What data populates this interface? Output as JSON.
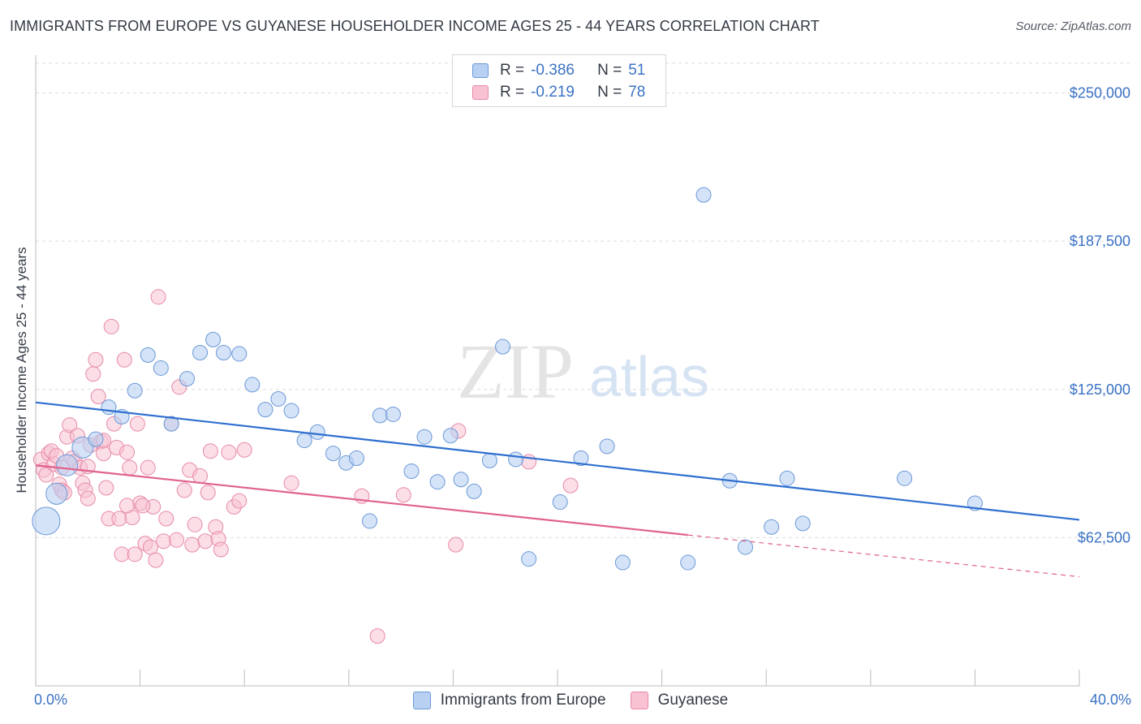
{
  "title": "IMMIGRANTS FROM EUROPE VS GUYANESE HOUSEHOLDER INCOME AGES 25 - 44 YEARS CORRELATION CHART",
  "source": "Source: ZipAtlas.com",
  "watermark": {
    "zip": "ZIP",
    "atlas": "atlas"
  },
  "legend": {
    "rows": [
      {
        "r_label": "R =",
        "r_value": "-0.386",
        "n_label": "N =",
        "n_value": "51"
      },
      {
        "r_label": "R =",
        "r_value": "-0.219",
        "n_label": "N =",
        "n_value": "78"
      }
    ]
  },
  "x_axis": {
    "min_label": "0.0%",
    "max_label": "40.0%"
  },
  "colors": {
    "blue_fill": "#b8d0f2",
    "blue_stroke": "#6a98d8",
    "blue_line": "#2e6fcf",
    "pink_fill": "#f8c2d2",
    "pink_stroke": "#e88aa8",
    "pink_line": "#e0628e",
    "axis_label": "#3a72c4",
    "grid": "#dcdcdc"
  },
  "chart_data": {
    "type": "scatter",
    "title": "IMMIGRANTS FROM EUROPE VS GUYANESE HOUSEHOLDER INCOME AGES 25 - 44 YEARS CORRELATION CHART",
    "xlabel": "",
    "ylabel": "Householder Income Ages 25 - 44 years",
    "xlim": [
      0,
      40
    ],
    "ylim": [
      0,
      262500
    ],
    "x_unit": "%",
    "yticks": [
      62500,
      125000,
      187500,
      250000
    ],
    "ytick_labels": [
      "$62,500",
      "$125,000",
      "$187,500",
      "$250,000"
    ],
    "grid": true,
    "legend_position": "top-center",
    "series": [
      {
        "name": "Immigrants from Europe",
        "color": "#6a98d8",
        "r": -0.386,
        "n": 51,
        "trend": {
          "x": [
            0,
            40
          ],
          "y": [
            119500,
            70000
          ],
          "dashed_from": null
        },
        "points": [
          {
            "x": 0.4,
            "y": 69500,
            "s": 3
          },
          {
            "x": 0.8,
            "y": 81000,
            "s": 2
          },
          {
            "x": 1.2,
            "y": 93000,
            "s": 2
          },
          {
            "x": 1.8,
            "y": 100500,
            "s": 2
          },
          {
            "x": 2.3,
            "y": 104000,
            "s": 1
          },
          {
            "x": 2.8,
            "y": 117500,
            "s": 1
          },
          {
            "x": 3.3,
            "y": 113500,
            "s": 1
          },
          {
            "x": 3.8,
            "y": 124500,
            "s": 1
          },
          {
            "x": 4.3,
            "y": 139500,
            "s": 1
          },
          {
            "x": 4.8,
            "y": 134000,
            "s": 1
          },
          {
            "x": 5.2,
            "y": 110500,
            "s": 1
          },
          {
            "x": 5.8,
            "y": 129500,
            "s": 1
          },
          {
            "x": 6.3,
            "y": 140500,
            "s": 1
          },
          {
            "x": 6.8,
            "y": 146000,
            "s": 1
          },
          {
            "x": 7.2,
            "y": 140500,
            "s": 1
          },
          {
            "x": 7.8,
            "y": 140000,
            "s": 1
          },
          {
            "x": 8.3,
            "y": 127000,
            "s": 1
          },
          {
            "x": 8.8,
            "y": 116500,
            "s": 1
          },
          {
            "x": 9.3,
            "y": 121000,
            "s": 1
          },
          {
            "x": 9.8,
            "y": 116000,
            "s": 1
          },
          {
            "x": 10.3,
            "y": 103500,
            "s": 1
          },
          {
            "x": 10.8,
            "y": 107000,
            "s": 1
          },
          {
            "x": 11.4,
            "y": 98000,
            "s": 1
          },
          {
            "x": 11.9,
            "y": 94000,
            "s": 1
          },
          {
            "x": 12.3,
            "y": 96000,
            "s": 1
          },
          {
            "x": 12.8,
            "y": 69500,
            "s": 1
          },
          {
            "x": 13.2,
            "y": 114000,
            "s": 1
          },
          {
            "x": 13.7,
            "y": 114500,
            "s": 1
          },
          {
            "x": 14.4,
            "y": 90500,
            "s": 1
          },
          {
            "x": 14.9,
            "y": 105000,
            "s": 1
          },
          {
            "x": 15.4,
            "y": 86000,
            "s": 1
          },
          {
            "x": 15.9,
            "y": 105500,
            "s": 1
          },
          {
            "x": 16.3,
            "y": 87000,
            "s": 1
          },
          {
            "x": 16.8,
            "y": 82000,
            "s": 1
          },
          {
            "x": 17.4,
            "y": 95000,
            "s": 1
          },
          {
            "x": 17.9,
            "y": 143000,
            "s": 1
          },
          {
            "x": 18.4,
            "y": 95500,
            "s": 1
          },
          {
            "x": 18.9,
            "y": 53500,
            "s": 1
          },
          {
            "x": 20.1,
            "y": 77500,
            "s": 1
          },
          {
            "x": 20.9,
            "y": 96000,
            "s": 1
          },
          {
            "x": 21.9,
            "y": 101000,
            "s": 1
          },
          {
            "x": 22.5,
            "y": 52000,
            "s": 1
          },
          {
            "x": 25.0,
            "y": 52000,
            "s": 1
          },
          {
            "x": 25.6,
            "y": 207000,
            "s": 1
          },
          {
            "x": 26.6,
            "y": 86500,
            "s": 1
          },
          {
            "x": 27.2,
            "y": 58500,
            "s": 1
          },
          {
            "x": 28.2,
            "y": 67000,
            "s": 1
          },
          {
            "x": 28.8,
            "y": 87500,
            "s": 1
          },
          {
            "x": 29.4,
            "y": 68500,
            "s": 1
          },
          {
            "x": 33.3,
            "y": 87500,
            "s": 1
          },
          {
            "x": 36.0,
            "y": 77000,
            "s": 1
          }
        ]
      },
      {
        "name": "Guyanese",
        "color": "#e88aa8",
        "r": -0.219,
        "n": 78,
        "trend": {
          "x": [
            0,
            40
          ],
          "y": [
            93000,
            46000
          ],
          "dashed_from": 25.0
        },
        "points": [
          {
            "x": 0.2,
            "y": 95500
          },
          {
            "x": 0.3,
            "y": 91000
          },
          {
            "x": 0.4,
            "y": 89000
          },
          {
            "x": 0.5,
            "y": 98000
          },
          {
            "x": 0.6,
            "y": 99000
          },
          {
            "x": 0.7,
            "y": 93500
          },
          {
            "x": 0.8,
            "y": 97000
          },
          {
            "x": 0.9,
            "y": 85000
          },
          {
            "x": 1.0,
            "y": 82500
          },
          {
            "x": 1.1,
            "y": 81500
          },
          {
            "x": 1.2,
            "y": 105000
          },
          {
            "x": 1.3,
            "y": 110000
          },
          {
            "x": 1.4,
            "y": 96000
          },
          {
            "x": 1.5,
            "y": 94500
          },
          {
            "x": 1.6,
            "y": 105500
          },
          {
            "x": 1.7,
            "y": 92000
          },
          {
            "x": 1.8,
            "y": 85500
          },
          {
            "x": 1.9,
            "y": 82500
          },
          {
            "x": 2.0,
            "y": 79000
          },
          {
            "x": 2.1,
            "y": 101500
          },
          {
            "x": 2.2,
            "y": 131500
          },
          {
            "x": 2.3,
            "y": 137500
          },
          {
            "x": 2.4,
            "y": 122000
          },
          {
            "x": 2.5,
            "y": 103000
          },
          {
            "x": 2.6,
            "y": 98000
          },
          {
            "x": 2.7,
            "y": 83500
          },
          {
            "x": 2.8,
            "y": 70500
          },
          {
            "x": 2.9,
            "y": 151500
          },
          {
            "x": 3.0,
            "y": 110500
          },
          {
            "x": 3.1,
            "y": 100500
          },
          {
            "x": 3.2,
            "y": 70500
          },
          {
            "x": 3.3,
            "y": 55500
          },
          {
            "x": 3.4,
            "y": 137500
          },
          {
            "x": 3.5,
            "y": 98500
          },
          {
            "x": 3.6,
            "y": 92000
          },
          {
            "x": 3.7,
            "y": 71000
          },
          {
            "x": 3.8,
            "y": 55500
          },
          {
            "x": 3.9,
            "y": 110500
          },
          {
            "x": 4.0,
            "y": 77000
          },
          {
            "x": 4.2,
            "y": 60000
          },
          {
            "x": 4.3,
            "y": 92000
          },
          {
            "x": 4.4,
            "y": 58500
          },
          {
            "x": 4.5,
            "y": 75500
          },
          {
            "x": 4.6,
            "y": 53000
          },
          {
            "x": 4.7,
            "y": 164000
          },
          {
            "x": 4.9,
            "y": 61000
          },
          {
            "x": 5.0,
            "y": 70500
          },
          {
            "x": 5.2,
            "y": 110500
          },
          {
            "x": 5.5,
            "y": 126000
          },
          {
            "x": 5.7,
            "y": 82500
          },
          {
            "x": 5.9,
            "y": 91000
          },
          {
            "x": 6.0,
            "y": 59500
          },
          {
            "x": 6.1,
            "y": 68000
          },
          {
            "x": 6.3,
            "y": 88500
          },
          {
            "x": 6.5,
            "y": 61000
          },
          {
            "x": 6.6,
            "y": 81500
          },
          {
            "x": 6.7,
            "y": 99000
          },
          {
            "x": 6.9,
            "y": 67000
          },
          {
            "x": 7.0,
            "y": 62000
          },
          {
            "x": 7.1,
            "y": 57500
          },
          {
            "x": 7.4,
            "y": 98500
          },
          {
            "x": 7.6,
            "y": 75500
          },
          {
            "x": 7.8,
            "y": 78000
          },
          {
            "x": 8.0,
            "y": 99500
          },
          {
            "x": 9.8,
            "y": 85500
          },
          {
            "x": 12.5,
            "y": 80000
          },
          {
            "x": 13.1,
            "y": 21000
          },
          {
            "x": 14.1,
            "y": 80500
          },
          {
            "x": 16.1,
            "y": 59500
          },
          {
            "x": 16.2,
            "y": 107500
          },
          {
            "x": 18.9,
            "y": 94500
          },
          {
            "x": 20.5,
            "y": 84500
          },
          {
            "x": 1.0,
            "y": 92000
          },
          {
            "x": 2.0,
            "y": 92500
          },
          {
            "x": 2.6,
            "y": 103500
          },
          {
            "x": 3.5,
            "y": 76000
          },
          {
            "x": 4.1,
            "y": 76000
          },
          {
            "x": 5.4,
            "y": 61500
          }
        ]
      }
    ]
  },
  "bottom_legend": {
    "series1": "Immigrants from Europe",
    "series2": "Guyanese"
  }
}
